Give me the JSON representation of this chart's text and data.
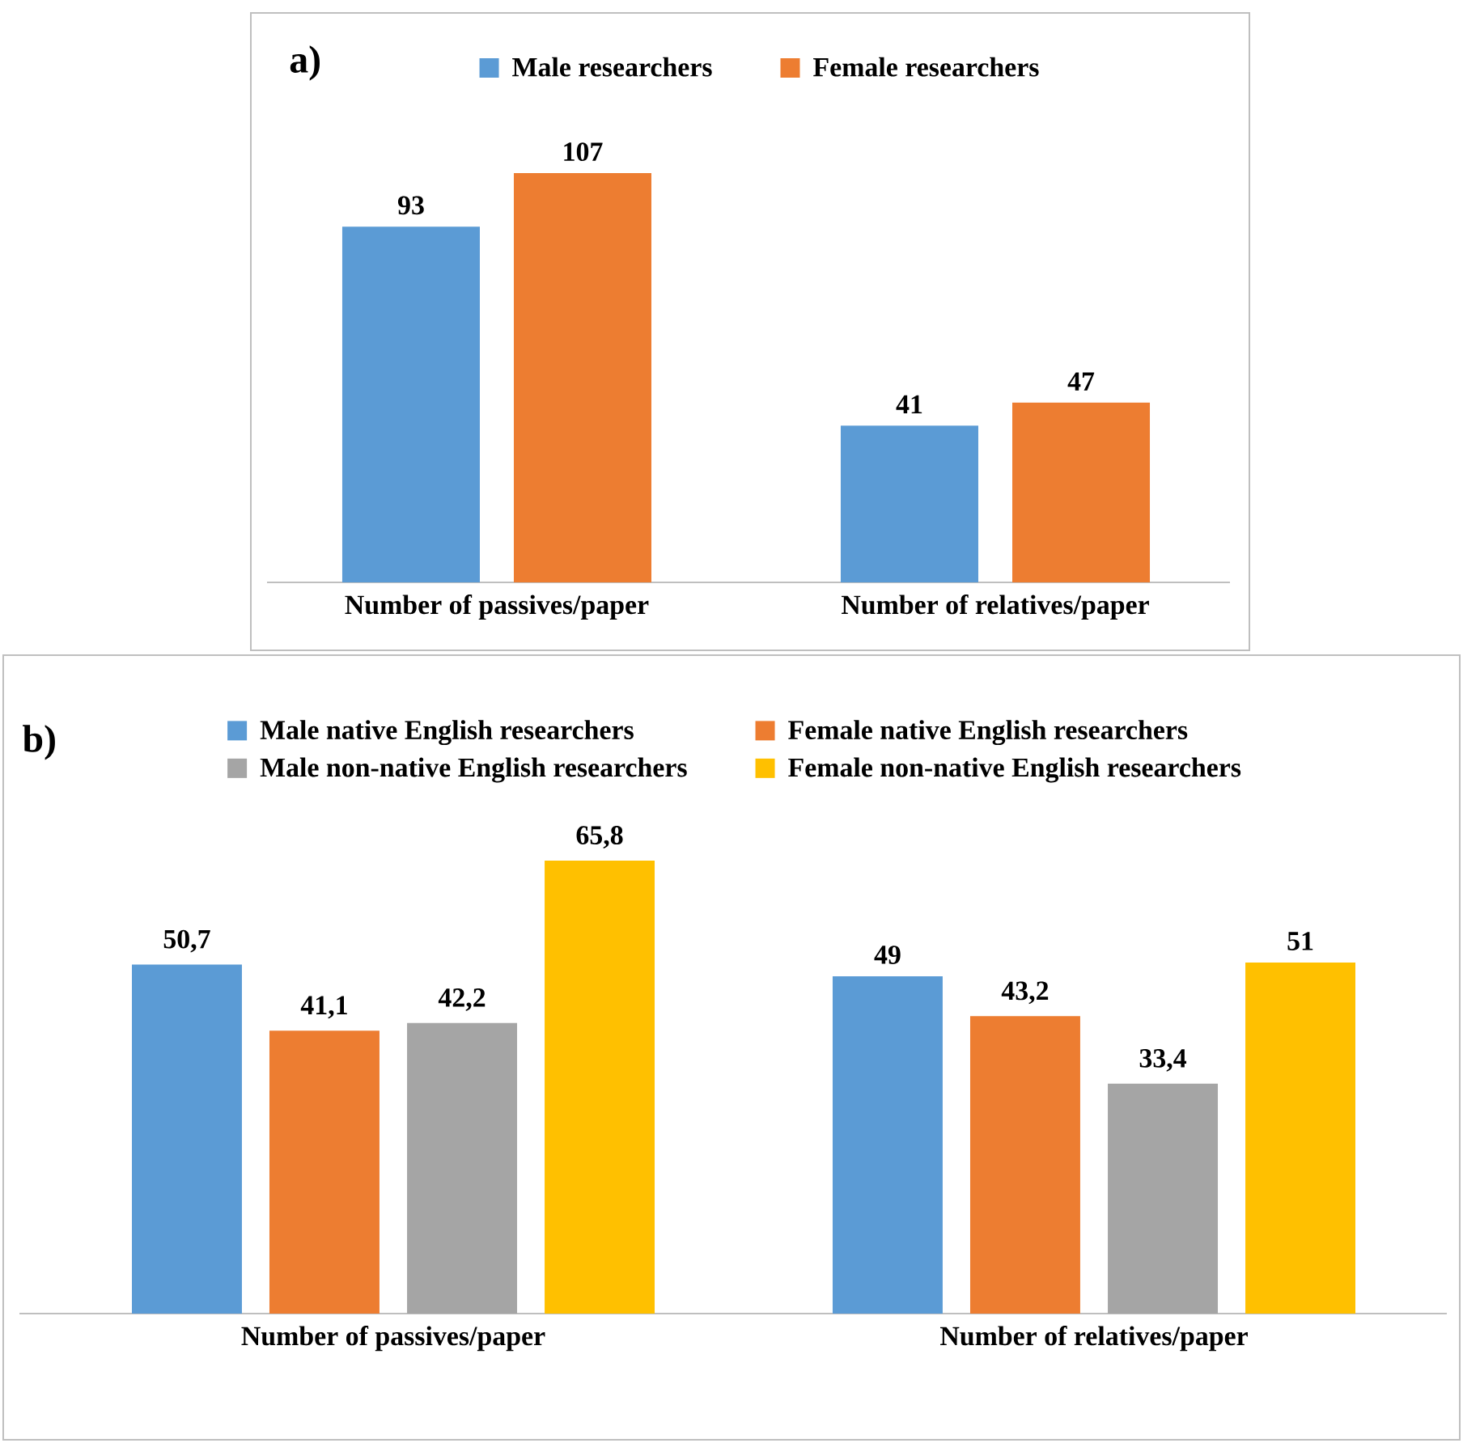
{
  "chart_data": [
    {
      "type": "bar",
      "title": "a)",
      "categories": [
        "Number of passives/paper",
        "Number of relatives/paper"
      ],
      "legend": "top",
      "data_labels": true,
      "series": [
        {
          "name": "Male researchers",
          "color": "#5b9bd5",
          "values": [
            93,
            41
          ]
        },
        {
          "name": "Female researchers",
          "color": "#ed7d31",
          "values": [
            107,
            47
          ]
        }
      ]
    },
    {
      "type": "bar",
      "title": "b)",
      "categories": [
        "Number of passives/paper",
        "Number of relatives/paper"
      ],
      "legend": "top",
      "series": [
        {
          "name": "Male native English researchers",
          "color": "#5b9bd5",
          "values": [
            50.7,
            49
          ],
          "value_labels": [
            "50,7",
            "49"
          ]
        },
        {
          "name": "Female native English researchers",
          "color": "#ed7d31",
          "values": [
            41.1,
            43.2
          ],
          "value_labels": [
            "41,1",
            "43,2"
          ]
        },
        {
          "name": "Male non-native English researchers",
          "color": "#a5a5a5",
          "values": [
            42.2,
            33.4
          ],
          "value_labels": [
            "42,2",
            "33,4"
          ]
        },
        {
          "name": "Female non-native English researchers",
          "color": "#ffc000",
          "values": [
            65.8,
            51
          ],
          "value_labels": [
            "65,8",
            "51"
          ]
        }
      ]
    }
  ]
}
